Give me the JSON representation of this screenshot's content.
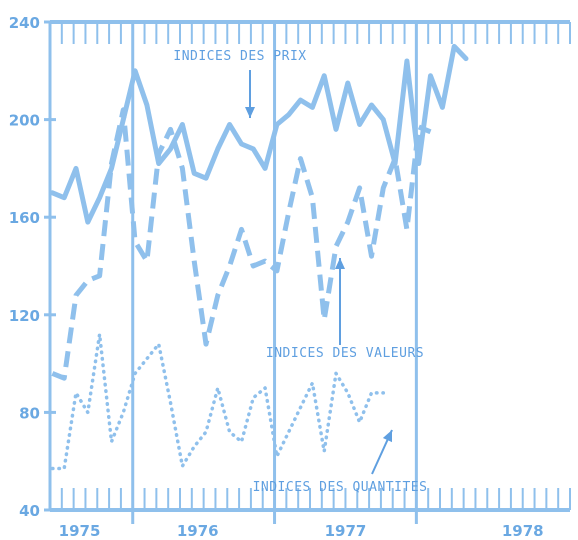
{
  "colors": {
    "background": "#ffffff",
    "ink": "#8fc0ec",
    "ink_dark": "#6aa8e2",
    "label": "#5f9fe0"
  },
  "chart_data": {
    "type": "line",
    "title": "",
    "xlabel": "",
    "ylabel": "",
    "ylim": [
      40,
      240
    ],
    "yticks": [
      "240",
      "200",
      "160",
      "120",
      "80",
      "40"
    ],
    "x_period_labels": [
      "1975",
      "1976",
      "1977",
      "1978"
    ],
    "x_range_months": [
      0,
      44
    ],
    "grid": false,
    "legend": "none",
    "series": [
      {
        "name": "INDICES DES PRIX",
        "style": "solid",
        "values": [
          170,
          168,
          180,
          158,
          168,
          180,
          200,
          220,
          206,
          182,
          188,
          198,
          178,
          176,
          188,
          198,
          190,
          188,
          180,
          198,
          202,
          208,
          205,
          218,
          196,
          215,
          198,
          206,
          200,
          182,
          224,
          182,
          218,
          205,
          230,
          225
        ]
      },
      {
        "name": "INDICES DES VALEURS",
        "style": "dashed",
        "values": [
          96,
          94,
          128,
          134,
          136,
          182,
          204,
          150,
          142,
          186,
          196,
          180,
          142,
          108,
          128,
          140,
          155,
          140,
          142,
          138,
          162,
          184,
          168,
          118,
          148,
          158,
          172,
          144,
          172,
          184,
          155,
          197,
          195
        ]
      },
      {
        "name": "INDICES DES QUANTITES",
        "style": "dotted",
        "values": [
          57,
          57,
          88,
          80,
          112,
          68,
          80,
          96,
          102,
          108,
          84,
          58,
          66,
          72,
          90,
          72,
          68,
          86,
          90,
          62,
          72,
          82,
          92,
          64,
          96,
          88,
          76,
          88,
          88
        ]
      }
    ],
    "annotations": [
      {
        "text": "INDICES DES PRIX",
        "series": "INDICES DES PRIX"
      },
      {
        "text": "INDICES DES VALEURS",
        "series": "INDICES DES VALEURS"
      },
      {
        "text": "INDICES DES QUANTITES",
        "series": "INDICES DES QUANTITES"
      }
    ]
  }
}
